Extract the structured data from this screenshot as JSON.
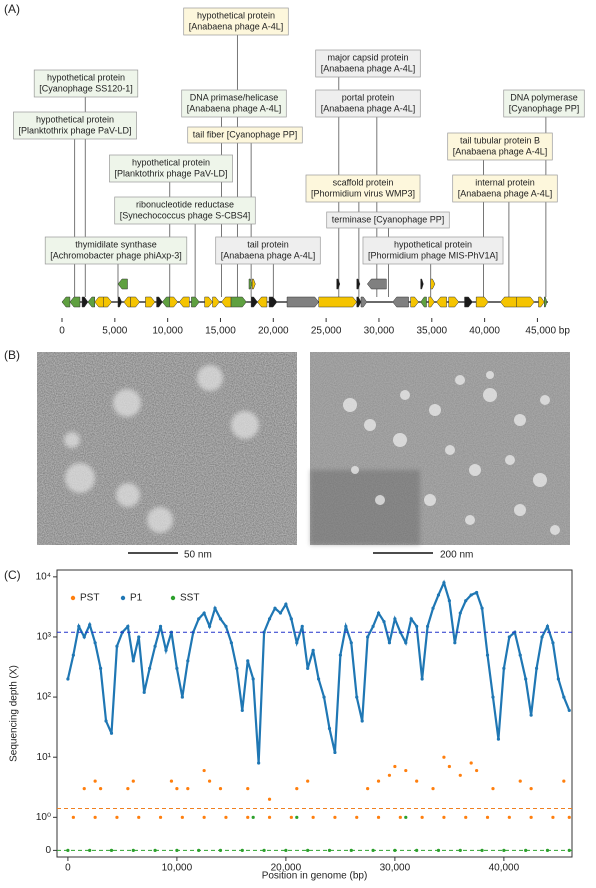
{
  "panel_labels": [
    "(A)",
    "(B)",
    "(C)"
  ],
  "micrographs": [
    {
      "scale_label": "50 nm"
    },
    {
      "scale_label": "200 nm"
    }
  ],
  "chart_data": [
    {
      "type": "gene_map",
      "xlim": [
        0,
        46000
      ],
      "xticks": [
        0,
        {
          "value": 5000,
          "label": "5,000"
        },
        {
          "value": 10000,
          "label": "10,000"
        },
        {
          "value": 15000,
          "label": "15,000"
        },
        {
          "value": 20000,
          "label": "20,000"
        },
        {
          "value": 25000,
          "label": "25,000"
        },
        {
          "value": 30000,
          "label": "30,000"
        },
        {
          "value": 35000,
          "label": "35,000"
        },
        {
          "value": 40000,
          "label": "40,000"
        },
        {
          "value": 45000,
          "label": "45,000 bp"
        }
      ],
      "genes": [
        {
          "start": 0,
          "end": 750,
          "strand": "-",
          "color": "#5fa040",
          "row": 0
        },
        {
          "start": 750,
          "end": 1700,
          "strand": "-",
          "color": "#5fa040",
          "row": 0
        },
        {
          "start": 1900,
          "end": 2450,
          "strand": "+",
          "color": "#1a1a1a",
          "row": 0
        },
        {
          "start": 2450,
          "end": 3100,
          "strand": "-",
          "color": "#5fa040",
          "row": 0
        },
        {
          "start": 3100,
          "end": 3950,
          "strand": "-",
          "color": "#f5c400",
          "row": 0
        },
        {
          "start": 3950,
          "end": 4700,
          "strand": "+",
          "color": "#f5c400",
          "row": 0
        },
        {
          "start": 5300,
          "end": 5650,
          "strand": "+",
          "color": "#1a1a1a",
          "row": 0
        },
        {
          "start": 5850,
          "end": 6500,
          "strand": "-",
          "color": "#f5c400",
          "row": 0
        },
        {
          "start": 6500,
          "end": 7350,
          "strand": "+",
          "color": "#f5c400",
          "row": 0
        },
        {
          "start": 7900,
          "end": 8800,
          "strand": "+",
          "color": "#f5c400",
          "row": 0
        },
        {
          "start": 8950,
          "end": 9500,
          "strand": "+",
          "color": "#1a1a1a",
          "row": 0
        },
        {
          "start": 9500,
          "end": 10200,
          "strand": "-",
          "color": "#5fa040",
          "row": 0
        },
        {
          "start": 10200,
          "end": 10950,
          "strand": "+",
          "color": "#f5c400",
          "row": 0
        },
        {
          "start": 11100,
          "end": 12050,
          "strand": "-",
          "color": "#f5c400",
          "row": 0
        },
        {
          "start": 12250,
          "end": 13000,
          "strand": "+",
          "color": "#5fa040",
          "row": 0
        },
        {
          "start": 13500,
          "end": 14250,
          "strand": "+",
          "color": "#f5c400",
          "row": 0
        },
        {
          "start": 14250,
          "end": 14900,
          "strand": "+",
          "color": "#f5c400",
          "row": 0
        },
        {
          "start": 15100,
          "end": 16000,
          "strand": "-",
          "color": "#f5c400",
          "row": 0
        },
        {
          "start": 16000,
          "end": 17450,
          "strand": "+",
          "color": "#5fa040",
          "row": 0
        },
        {
          "start": 17900,
          "end": 18500,
          "strand": "+",
          "color": "#1a1a1a",
          "row": 0
        },
        {
          "start": 18500,
          "end": 19400,
          "strand": "-",
          "color": "#f5c400",
          "row": 0
        },
        {
          "start": 19600,
          "end": 20350,
          "strand": "+",
          "color": "#1a1a1a",
          "row": 0
        },
        {
          "start": 21300,
          "end": 24300,
          "strand": "+",
          "color": "#808080",
          "row": 0
        },
        {
          "start": 24300,
          "end": 27900,
          "strand": "+",
          "color": "#f5c400",
          "row": 0
        },
        {
          "start": 27900,
          "end": 28300,
          "strand": "+",
          "color": "#1a1a1a",
          "row": 0
        },
        {
          "start": 28300,
          "end": 28850,
          "strand": "+",
          "color": "#808080",
          "row": 0
        },
        {
          "start": 31300,
          "end": 32800,
          "strand": "-",
          "color": "#808080",
          "row": 0
        },
        {
          "start": 33000,
          "end": 33750,
          "strand": "+",
          "color": "#f5c400",
          "row": 0
        },
        {
          "start": 33950,
          "end": 34500,
          "strand": "-",
          "color": "#5fa040",
          "row": 0
        },
        {
          "start": 34700,
          "end": 35250,
          "strand": "+",
          "color": "#f5c400",
          "row": 0
        },
        {
          "start": 35450,
          "end": 36400,
          "strand": "-",
          "color": "#f5c400",
          "row": 0
        },
        {
          "start": 36600,
          "end": 37550,
          "strand": "+",
          "color": "#f5c400",
          "row": 0
        },
        {
          "start": 38100,
          "end": 38850,
          "strand": "+",
          "color": "#1a1a1a",
          "row": 0
        },
        {
          "start": 39200,
          "end": 40350,
          "strand": "+",
          "color": "#f5c400",
          "row": 0
        },
        {
          "start": 41500,
          "end": 43000,
          "strand": "-",
          "color": "#f5c400",
          "row": 0
        },
        {
          "start": 43000,
          "end": 44700,
          "strand": "+",
          "color": "#f5c400",
          "row": 0
        },
        {
          "start": 45100,
          "end": 45650,
          "strand": "+",
          "color": "#f5c400",
          "row": 0
        },
        {
          "start": 45650,
          "end": 45900,
          "strand": "+",
          "color": "#5fa040",
          "row": 0
        },
        {
          "start": 5300,
          "end": 6200,
          "strand": "-",
          "color": "#5fa040",
          "row": 1
        },
        {
          "start": 17700,
          "end": 18000,
          "strand": "+",
          "color": "#5fa040",
          "row": 1
        },
        {
          "start": 18000,
          "end": 18300,
          "strand": "+",
          "color": "#f5c400",
          "row": 1
        },
        {
          "start": 26000,
          "end": 26300,
          "strand": "+",
          "color": "#1a1a1a",
          "row": 1
        },
        {
          "start": 27900,
          "end": 28200,
          "strand": "+",
          "color": "#1a1a1a",
          "row": 1
        },
        {
          "start": 28900,
          "end": 30700,
          "strand": "-",
          "color": "#808080",
          "row": 1
        },
        {
          "start": 33950,
          "end": 34200,
          "strand": "+",
          "color": "#1a1a1a",
          "row": 1
        },
        {
          "start": 34900,
          "end": 35300,
          "strand": "+",
          "color": "#f5c400",
          "row": 1
        }
      ],
      "annotations": [
        {
          "lines": [
            "hypothetical protein",
            "[Anabaena phage A-4L]"
          ],
          "position": 16600,
          "fill": "#fdf7dc"
        },
        {
          "lines": [
            "major capsid protein",
            "[Anabaena phage A-4L]"
          ],
          "position": 26200,
          "fill": "#eeeeee"
        },
        {
          "lines": [
            "hypothetical protein",
            "[Cyanophage SS120-1]"
          ],
          "position": 2200,
          "fill": "#eef5ea"
        },
        {
          "lines": [
            "DNA primase/helicase",
            "[Anabaena phage A-4L]"
          ],
          "position": 15100,
          "fill": "#eef5ea"
        },
        {
          "lines": [
            "portal protein",
            "[Anabaena phage A-4L]"
          ],
          "position": 29800,
          "fill": "#eeeeee"
        },
        {
          "lines": [
            "DNA polymerase",
            "[Cyanophage PP]"
          ],
          "position": 45800,
          "fill": "#eef5ea"
        },
        {
          "lines": [
            "hypothetical protein",
            "[Planktothrix phage PaV-LD]"
          ],
          "position": 1200,
          "fill": "#eef5ea"
        },
        {
          "lines": [
            "tail fiber [Cyanophage PP]"
          ],
          "position": 17900,
          "fill": "#fdf7dc"
        },
        {
          "lines": [
            "tail tubular protein B",
            "[Anabaena phage A-4L]"
          ],
          "position": 39900,
          "fill": "#fdf7dc"
        },
        {
          "lines": [
            "hypothetical protein",
            "[Planktothrix phage PaV-LD]"
          ],
          "position": 10200,
          "fill": "#eef5ea"
        },
        {
          "lines": [
            "scaffold protein",
            "[Phormidium virus WMP3]"
          ],
          "position": 28100,
          "fill": "#fdf7dc"
        },
        {
          "lines": [
            "internal protein",
            "[Anabaena phage A-4L]"
          ],
          "position": 42300,
          "fill": "#fdf7dc"
        },
        {
          "lines": [
            "ribonucleotide reductase",
            "[Synechococcus phage S-CBS4]"
          ],
          "position": 12600,
          "fill": "#eef5ea"
        },
        {
          "lines": [
            "terminase [Cyanophage PP]"
          ],
          "position": 30900,
          "fill": "#eeeeee"
        },
        {
          "lines": [
            "thymidilate synthase",
            "[Achromobacter phage phiAxp-3]"
          ],
          "position": 5300,
          "fill": "#eef5ea"
        },
        {
          "lines": [
            "tail protein",
            "[Anabaena phage A-4L]"
          ],
          "position": 20000,
          "fill": "#eeeeee"
        },
        {
          "lines": [
            "hypothetical protein",
            "[Phormidium phage MIS-PhV1A]"
          ],
          "position": 34900,
          "fill": "#eeeeee"
        }
      ]
    },
    {
      "type": "scatter",
      "x_label": "Position in genome (bp)",
      "y_label": "Sequencing depth (X)",
      "xlim": [
        -1000,
        46250
      ],
      "xticks": [
        0,
        {
          "value": 10000,
          "label": "10,000"
        },
        {
          "value": 20000,
          "label": "20,000"
        },
        {
          "value": 30000,
          "label": "30,000"
        },
        {
          "value": 40000,
          "label": "40,000"
        }
      ],
      "ylim": [
        -0.2,
        13000
      ],
      "yscale": "symlog",
      "linthresh": 1,
      "linscale": 0.55,
      "yticks": [
        0,
        {
          "value": 1,
          "label": "10⁰"
        },
        {
          "value": 10,
          "label": "10¹"
        },
        {
          "value": 100,
          "label": "10²"
        },
        {
          "value": 1000,
          "label": "10³"
        },
        {
          "value": 10000,
          "label": "10⁴"
        }
      ],
      "legend": "upper left",
      "reference_lines": [
        {
          "value": 1200,
          "color": "#2233cc"
        },
        {
          "value": 1.4,
          "color": "#f08020"
        },
        {
          "value": 0,
          "color": "#2ca02c"
        }
      ],
      "series": [
        {
          "name": "PST",
          "color": "#ff7f0e",
          "connect": false,
          "x": [
            500,
            2500,
            4500,
            6500,
            8500,
            10500,
            12500,
            14500,
            16500,
            18500,
            20500,
            22500,
            24500,
            26500,
            28500,
            30500,
            32500,
            34500,
            36500,
            38500,
            40500,
            42500,
            44500,
            46000,
            1500,
            2500,
            3000,
            5500,
            6000,
            9500,
            10000,
            11000,
            12500,
            13000,
            14000,
            16500,
            18500,
            21000,
            22000,
            27500,
            28500,
            29500,
            30000,
            31000,
            32000,
            33500,
            34500,
            35000,
            36000,
            37000,
            37500,
            39000,
            41500,
            42500,
            45500
          ],
          "values": [
            1,
            1,
            1,
            1,
            1,
            1,
            1,
            1,
            1,
            1,
            1,
            1,
            1,
            1,
            1,
            1,
            1,
            1,
            1,
            1,
            1,
            1,
            1,
            1,
            3,
            4,
            3,
            3,
            4,
            4,
            3,
            3,
            6,
            4,
            3,
            3,
            2,
            3,
            4,
            3,
            4,
            5,
            7,
            6,
            4,
            3,
            10,
            7,
            5,
            8,
            6,
            3,
            4,
            3,
            4
          ]
        },
        {
          "name": "P1",
          "color": "#1f77b4",
          "connect": true,
          "x": [
            0,
            500,
            1000,
            1500,
            2000,
            2500,
            3000,
            3500,
            4000,
            4500,
            5000,
            5500,
            6000,
            6500,
            7000,
            7500,
            8000,
            8500,
            9000,
            9500,
            10000,
            10500,
            11000,
            11500,
            12000,
            12500,
            13000,
            13500,
            14000,
            14500,
            15000,
            15500,
            16000,
            16500,
            17000,
            17500,
            18000,
            18500,
            19000,
            19500,
            20000,
            20500,
            21000,
            21500,
            22000,
            22500,
            23000,
            23500,
            24000,
            24500,
            25000,
            25500,
            26000,
            26500,
            27000,
            27500,
            28000,
            28500,
            29000,
            29500,
            30000,
            30500,
            31000,
            31500,
            32000,
            32500,
            33000,
            33500,
            34000,
            34500,
            35000,
            35500,
            36000,
            36500,
            37000,
            37500,
            38000,
            38500,
            39000,
            39500,
            40000,
            40500,
            41000,
            41500,
            42000,
            42500,
            43000,
            43500,
            44000,
            44500,
            45000,
            45500,
            46000
          ],
          "values": [
            200,
            500,
            1500,
            1000,
            1600,
            800,
            300,
            40,
            25,
            700,
            1200,
            1500,
            400,
            1000,
            120,
            300,
            700,
            1500,
            600,
            1200,
            300,
            100,
            400,
            1200,
            2000,
            2500,
            1500,
            3000,
            2000,
            1500,
            800,
            300,
            60,
            400,
            200,
            8,
            1200,
            2000,
            3000,
            2500,
            3500,
            2000,
            800,
            1500,
            300,
            600,
            200,
            100,
            30,
            12,
            500,
            1500,
            800,
            100,
            40,
            1000,
            1500,
            2500,
            1800,
            800,
            2000,
            1200,
            800,
            2000,
            1500,
            200,
            1500,
            3000,
            5000,
            8000,
            4000,
            800,
            2500,
            4000,
            5000,
            5500,
            3000,
            500,
            100,
            20,
            300,
            1000,
            1200,
            500,
            200,
            50,
            300,
            1000,
            1500,
            800,
            200,
            100,
            60
          ]
        },
        {
          "name": "SST",
          "color": "#2ca02c",
          "connect": false,
          "x": [
            0,
            2000,
            4000,
            6000,
            8000,
            10000,
            12000,
            14000,
            16000,
            18000,
            20000,
            22000,
            24000,
            26000,
            28000,
            30000,
            32000,
            34000,
            36000,
            38000,
            40000,
            42000,
            44000,
            46000,
            17000,
            21000,
            31000
          ],
          "values": [
            0,
            0,
            0,
            0,
            0,
            0,
            0,
            0,
            0,
            0,
            0,
            0,
            0,
            0,
            0,
            0,
            0,
            0,
            0,
            0,
            0,
            0,
            0,
            0,
            1,
            1,
            1
          ]
        }
      ]
    }
  ]
}
